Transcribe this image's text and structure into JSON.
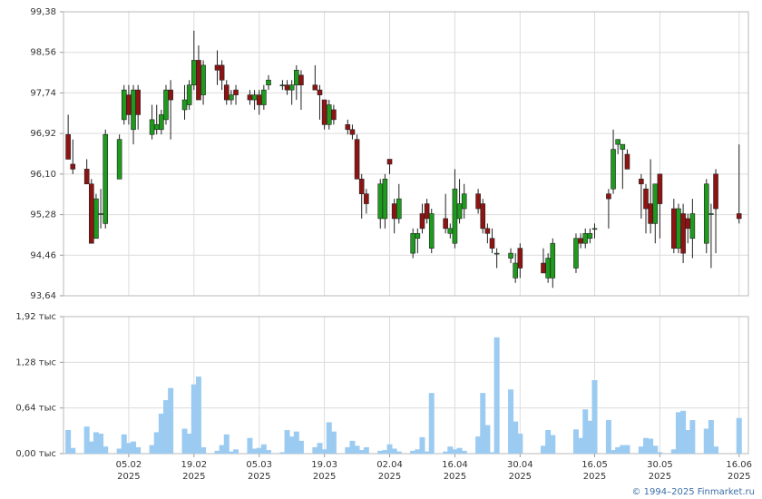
{
  "chart_data": {
    "type": "candlestick",
    "x": [
      "2025-01-23",
      "2025-01-24",
      "2025-01-27",
      "2025-01-28",
      "2025-01-29",
      "2025-01-30",
      "2025-01-31",
      "2025-02-03",
      "2025-02-04",
      "2025-02-05",
      "2025-02-06",
      "2025-02-07",
      "2025-02-10",
      "2025-02-11",
      "2025-02-12",
      "2025-02-13",
      "2025-02-14",
      "2025-02-17",
      "2025-02-18",
      "2025-02-19",
      "2025-02-20",
      "2025-02-21",
      "2025-02-24",
      "2025-02-25",
      "2025-02-26",
      "2025-02-27",
      "2025-02-28",
      "2025-03-03",
      "2025-03-04",
      "2025-03-05",
      "2025-03-06",
      "2025-03-07",
      "2025-03-10",
      "2025-03-11",
      "2025-03-12",
      "2025-03-13",
      "2025-03-14",
      "2025-03-17",
      "2025-03-18",
      "2025-03-19",
      "2025-03-20",
      "2025-03-21",
      "2025-03-24",
      "2025-03-25",
      "2025-03-26",
      "2025-03-27",
      "2025-03-28",
      "2025-03-31",
      "2025-04-01",
      "2025-04-02",
      "2025-04-03",
      "2025-04-04",
      "2025-04-07",
      "2025-04-08",
      "2025-04-09",
      "2025-04-10",
      "2025-04-11",
      "2025-04-14",
      "2025-04-15",
      "2025-04-16",
      "2025-04-17",
      "2025-04-18",
      "2025-04-21",
      "2025-04-22",
      "2025-04-23",
      "2025-04-24",
      "2025-04-25",
      "2025-04-28",
      "2025-04-29",
      "2025-04-30",
      "2025-05-05",
      "2025-05-06",
      "2025-05-07",
      "2025-05-12",
      "2025-05-13",
      "2025-05-14",
      "2025-05-15",
      "2025-05-16",
      "2025-05-19",
      "2025-05-20",
      "2025-05-21",
      "2025-05-22",
      "2025-05-23",
      "2025-05-26",
      "2025-05-27",
      "2025-05-28",
      "2025-05-29",
      "2025-05-30",
      "2025-06-02",
      "2025-06-03",
      "2025-06-04",
      "2025-06-05",
      "2025-06-06",
      "2025-06-09",
      "2025-06-10",
      "2025-06-11",
      "2025-06-16"
    ],
    "open": [
      96.9,
      96.3,
      96.2,
      95.9,
      94.8,
      95.3,
      95.1,
      96.0,
      97.2,
      97.7,
      97.0,
      97.8,
      96.9,
      97.0,
      97.0,
      97.2,
      97.8,
      97.4,
      97.5,
      97.9,
      98.4,
      97.7,
      98.3,
      98.3,
      97.9,
      97.6,
      97.8,
      97.7,
      97.6,
      97.7,
      97.5,
      97.9,
      97.9,
      97.9,
      97.8,
      97.9,
      98.1,
      97.9,
      97.8,
      97.6,
      97.1,
      97.4,
      97.1,
      97.0,
      96.8,
      96.0,
      95.7,
      95.2,
      95.2,
      96.4,
      95.5,
      95.2,
      94.5,
      94.8,
      95.3,
      95.5,
      94.6,
      95.2,
      94.9,
      94.7,
      95.2,
      95.4,
      95.7,
      95.5,
      95.0,
      94.8,
      94.5,
      94.4,
      94.0,
      94.6,
      94.3,
      94.0,
      94.0,
      94.2,
      94.8,
      94.7,
      94.8,
      95.0,
      95.7,
      95.8,
      96.7,
      96.6,
      96.5,
      96.0,
      95.8,
      95.5,
      95.1,
      96.1,
      95.4,
      94.6,
      95.3,
      95.2,
      94.8,
      94.7,
      95.3,
      96.1,
      95.3
    ],
    "high": [
      97.3,
      96.8,
      96.4,
      96.0,
      95.7,
      95.8,
      97.0,
      96.9,
      97.9,
      97.9,
      97.9,
      97.9,
      97.5,
      97.5,
      97.4,
      97.9,
      98.0,
      97.9,
      98.0,
      99.0,
      98.7,
      98.4,
      98.6,
      98.4,
      98.0,
      97.8,
      97.9,
      97.8,
      97.8,
      97.8,
      97.9,
      98.1,
      98.0,
      98.0,
      98.0,
      98.3,
      98.2,
      98.3,
      97.9,
      97.6,
      97.6,
      97.5,
      97.2,
      97.1,
      96.9,
      96.1,
      95.8,
      96.0,
      96.1,
      96.4,
      95.6,
      95.9,
      95.0,
      95.0,
      95.5,
      95.6,
      95.4,
      95.7,
      95.1,
      96.2,
      96.0,
      95.9,
      95.8,
      95.6,
      95.1,
      95.0,
      94.6,
      94.6,
      94.5,
      94.7,
      94.6,
      94.5,
      94.8,
      94.9,
      94.9,
      95.0,
      95.0,
      95.1,
      95.8,
      97.0,
      96.8,
      96.7,
      96.6,
      96.1,
      95.9,
      96.4,
      95.9,
      96.1,
      95.6,
      95.5,
      95.5,
      95.3,
      95.6,
      96.0,
      95.5,
      96.2,
      96.7
    ],
    "low": [
      96.4,
      96.1,
      95.9,
      94.7,
      94.8,
      95.0,
      95.0,
      96.0,
      97.1,
      97.1,
      96.7,
      97.0,
      96.8,
      96.9,
      96.9,
      97.1,
      96.8,
      97.2,
      97.4,
      97.8,
      97.6,
      97.5,
      97.9,
      97.8,
      97.5,
      97.5,
      97.5,
      97.5,
      97.4,
      97.3,
      97.4,
      97.8,
      97.8,
      97.7,
      97.5,
      97.6,
      97.4,
      97.8,
      97.2,
      97.0,
      97.0,
      97.1,
      96.9,
      96.8,
      96.0,
      95.2,
      95.3,
      95.0,
      95.0,
      96.1,
      94.9,
      95.1,
      94.4,
      94.5,
      94.9,
      95.1,
      94.5,
      94.9,
      94.8,
      94.6,
      95.1,
      95.2,
      95.3,
      94.9,
      94.7,
      94.5,
      94.2,
      94.3,
      93.9,
      94.0,
      94.1,
      93.9,
      93.8,
      94.1,
      94.6,
      94.6,
      94.7,
      94.8,
      95.0,
      95.7,
      96.5,
      95.8,
      96.2,
      95.2,
      94.9,
      94.9,
      94.7,
      94.8,
      94.5,
      94.5,
      94.3,
      94.7,
      94.4,
      94.5,
      94.2,
      94.5,
      95.1
    ],
    "close": [
      96.4,
      96.2,
      95.9,
      94.7,
      95.6,
      95.3,
      96.9,
      96.8,
      97.8,
      97.3,
      97.8,
      97.3,
      97.2,
      97.1,
      97.3,
      97.8,
      97.6,
      97.6,
      97.9,
      98.4,
      97.6,
      98.3,
      98.2,
      98.0,
      97.6,
      97.7,
      97.7,
      97.6,
      97.7,
      97.5,
      97.8,
      98.0,
      97.9,
      97.8,
      97.9,
      98.2,
      97.9,
      97.8,
      97.7,
      97.1,
      97.5,
      97.2,
      97.0,
      96.9,
      96.0,
      95.7,
      95.5,
      95.9,
      96.0,
      96.3,
      95.2,
      95.6,
      94.9,
      94.9,
      95.0,
      95.2,
      95.3,
      95.0,
      95.0,
      95.8,
      95.5,
      95.7,
      95.4,
      95.0,
      94.9,
      94.6,
      94.5,
      94.5,
      94.3,
      94.2,
      94.1,
      94.4,
      94.7,
      94.8,
      94.7,
      94.9,
      94.9,
      95.0,
      95.6,
      96.6,
      96.8,
      96.7,
      96.2,
      95.9,
      95.4,
      95.1,
      95.9,
      95.5,
      94.6,
      95.4,
      94.5,
      95.0,
      95.3,
      95.9,
      95.3,
      95.4,
      95.2
    ],
    "up_color": "#1f9a1f",
    "down_color": "#8e1414",
    "xlim": [
      "2025-01-22",
      "2025-06-18"
    ],
    "xticks": [
      {
        "value": "2025-02-05",
        "label": "05.02",
        "year": "2025"
      },
      {
        "value": "2025-02-19",
        "label": "19.02",
        "year": "2025"
      },
      {
        "value": "2025-03-05",
        "label": "05.03",
        "year": "2025"
      },
      {
        "value": "2025-03-19",
        "label": "19.03",
        "year": "2025"
      },
      {
        "value": "2025-04-02",
        "label": "02.04",
        "year": "2025"
      },
      {
        "value": "2025-04-16",
        "label": "16.04",
        "year": "2025"
      },
      {
        "value": "2025-04-30",
        "label": "30.04",
        "year": "2025"
      },
      {
        "value": "2025-05-16",
        "label": "16.05",
        "year": "2025"
      },
      {
        "value": "2025-05-30",
        "label": "30.05",
        "year": "2025"
      },
      {
        "value": "2025-06-16",
        "label": "16.06",
        "year": "2025"
      }
    ],
    "ylim": [
      93.64,
      99.38
    ],
    "yticks": [
      {
        "value": 93.64,
        "label": "93,64"
      },
      {
        "value": 94.46,
        "label": "94,46"
      },
      {
        "value": 95.28,
        "label": "95,28"
      },
      {
        "value": 96.1,
        "label": "96,10"
      },
      {
        "value": 96.92,
        "label": "96,92"
      },
      {
        "value": 97.74,
        "label": "97,74"
      },
      {
        "value": 98.56,
        "label": "98,56"
      },
      {
        "value": 99.38,
        "label": "99,38"
      }
    ],
    "grid": true,
    "volume": {
      "color": "#9ccbf2",
      "values": [
        0.33,
        0.08,
        0.38,
        0.17,
        0.3,
        0.28,
        0.1,
        0.07,
        0.27,
        0.15,
        0.17,
        0.09,
        0.12,
        0.3,
        0.56,
        0.75,
        0.92,
        0.35,
        0.28,
        0.97,
        1.08,
        0.09,
        0.04,
        0.12,
        0.27,
        0.03,
        0.06,
        0.22,
        0.07,
        0.08,
        0.13,
        0.05,
        0.02,
        0.33,
        0.24,
        0.31,
        0.18,
        0.09,
        0.15,
        0.06,
        0.44,
        0.31,
        0.09,
        0.18,
        0.11,
        0.05,
        0.09,
        0.04,
        0.05,
        0.13,
        0.07,
        0.03,
        0.04,
        0.06,
        0.23,
        0.03,
        0.85,
        0.03,
        0.1,
        0.06,
        0.08,
        0.04,
        0.24,
        0.85,
        0.4,
        0.02,
        1.63,
        0.9,
        0.45,
        0.28,
        0.11,
        0.33,
        0.26,
        0.34,
        0.22,
        0.62,
        0.46,
        1.03,
        0.47,
        0.05,
        0.09,
        0.12,
        0.12,
        0.1,
        0.22,
        0.21,
        0.11,
        0.02,
        0.06,
        0.58,
        0.6,
        0.33,
        0.47,
        0.35,
        0.47,
        0.1,
        0.5
      ],
      "ylim": [
        0,
        1.92
      ],
      "yticks": [
        {
          "value": 0,
          "label": "0,00 тыс"
        },
        {
          "value": 0.64,
          "label": "0,64 тыс"
        },
        {
          "value": 1.28,
          "label": "1,28 тыс"
        },
        {
          "value": 1.92,
          "label": "1,92 тыс"
        }
      ]
    },
    "footer": "© 1994–2025 Finmarket.ru"
  }
}
